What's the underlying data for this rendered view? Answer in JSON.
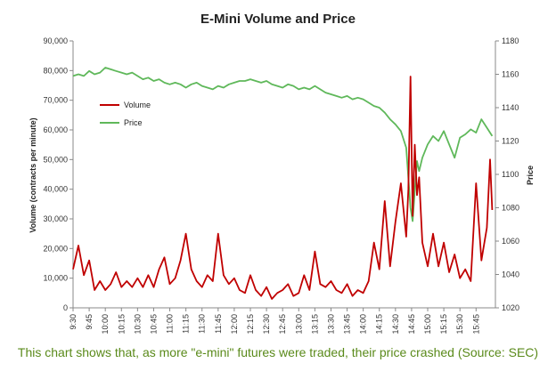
{
  "chart_data": {
    "type": "line",
    "title": "E-Mini Volume and Price",
    "ylabel_left": "Volume (contracts per minute)",
    "ylabel_right": "Price",
    "xlabel": "",
    "ylim_left": [
      0,
      90000
    ],
    "ylim_right": [
      1020,
      1180
    ],
    "yticks_left": [
      "0",
      "10,000",
      "20,000",
      "30,000",
      "40,000",
      "50,000",
      "60,000",
      "70,000",
      "80,000",
      "90,000"
    ],
    "yticks_left_values": [
      0,
      10000,
      20000,
      30000,
      40000,
      50000,
      60000,
      70000,
      80000,
      90000
    ],
    "yticks_right": [
      "1020",
      "1040",
      "1060",
      "1080",
      "1100",
      "1120",
      "1140",
      "1160",
      "1180"
    ],
    "yticks_right_values": [
      1020,
      1040,
      1060,
      1080,
      1100,
      1120,
      1140,
      1160,
      1180
    ],
    "x_tick_labels": [
      "9:30",
      "9:45",
      "10:00",
      "10:15",
      "10:30",
      "10:45",
      "11:00",
      "11:15",
      "11:30",
      "11:45",
      "12:00",
      "12:15",
      "12:30",
      "12:45",
      "13:00",
      "13:15",
      "13:30",
      "13:45",
      "14:00",
      "14:15",
      "14:30",
      "14:45",
      "15:00",
      "15:15",
      "15:30",
      "15:45"
    ],
    "x_minutes_start": 570,
    "x_minutes_end": 963,
    "grid": false,
    "legend_position": "top-left",
    "series": [
      {
        "name": "Volume",
        "axis": "left",
        "color": "#c00000",
        "points": [
          [
            "9:30",
            13000
          ],
          [
            "9:35",
            21000
          ],
          [
            "9:40",
            11000
          ],
          [
            "9:45",
            16000
          ],
          [
            "9:50",
            6000
          ],
          [
            "9:55",
            9000
          ],
          [
            "10:00",
            6000
          ],
          [
            "10:05",
            8000
          ],
          [
            "10:10",
            12000
          ],
          [
            "10:15",
            7000
          ],
          [
            "10:20",
            9000
          ],
          [
            "10:25",
            7000
          ],
          [
            "10:30",
            10000
          ],
          [
            "10:35",
            7000
          ],
          [
            "10:40",
            11000
          ],
          [
            "10:45",
            7000
          ],
          [
            "10:50",
            13000
          ],
          [
            "10:55",
            17000
          ],
          [
            "11:00",
            8000
          ],
          [
            "11:05",
            10000
          ],
          [
            "11:10",
            16000
          ],
          [
            "11:15",
            25000
          ],
          [
            "11:20",
            13000
          ],
          [
            "11:25",
            9000
          ],
          [
            "11:30",
            7000
          ],
          [
            "11:35",
            11000
          ],
          [
            "11:40",
            9000
          ],
          [
            "11:45",
            25000
          ],
          [
            "11:50",
            11000
          ],
          [
            "11:55",
            8000
          ],
          [
            "12:00",
            10000
          ],
          [
            "12:05",
            6000
          ],
          [
            "12:10",
            5000
          ],
          [
            "12:15",
            11000
          ],
          [
            "12:20",
            6000
          ],
          [
            "12:25",
            4000
          ],
          [
            "12:30",
            7000
          ],
          [
            "12:35",
            3000
          ],
          [
            "12:40",
            5000
          ],
          [
            "12:45",
            6000
          ],
          [
            "12:50",
            8000
          ],
          [
            "12:55",
            4000
          ],
          [
            "13:00",
            5000
          ],
          [
            "13:05",
            11000
          ],
          [
            "13:10",
            6000
          ],
          [
            "13:15",
            19000
          ],
          [
            "13:20",
            8000
          ],
          [
            "13:25",
            7000
          ],
          [
            "13:30",
            9000
          ],
          [
            "13:35",
            6000
          ],
          [
            "13:40",
            5000
          ],
          [
            "13:45",
            8000
          ],
          [
            "13:50",
            4000
          ],
          [
            "13:55",
            6000
          ],
          [
            "14:00",
            5000
          ],
          [
            "14:05",
            9000
          ],
          [
            "14:10",
            22000
          ],
          [
            "14:15",
            13000
          ],
          [
            "14:20",
            36000
          ],
          [
            "14:25",
            14000
          ],
          [
            "14:30",
            29000
          ],
          [
            "14:35",
            42000
          ],
          [
            "14:40",
            24000
          ],
          [
            "14:42",
            40000
          ],
          [
            "14:44",
            78000
          ],
          [
            "14:46",
            31000
          ],
          [
            "14:48",
            55000
          ],
          [
            "14:50",
            38000
          ],
          [
            "14:52",
            44000
          ],
          [
            "14:55",
            22000
          ],
          [
            "15:00",
            14000
          ],
          [
            "15:05",
            25000
          ],
          [
            "15:10",
            14000
          ],
          [
            "15:15",
            22000
          ],
          [
            "15:20",
            12000
          ],
          [
            "15:25",
            18000
          ],
          [
            "15:30",
            10000
          ],
          [
            "15:35",
            13000
          ],
          [
            "15:40",
            9000
          ],
          [
            "15:45",
            42000
          ],
          [
            "15:50",
            16000
          ],
          [
            "15:55",
            27000
          ],
          [
            "15:58",
            50000
          ],
          [
            "16:00",
            33000
          ]
        ]
      },
      {
        "name": "Price",
        "axis": "right",
        "color": "#5fb85a",
        "points": [
          [
            "9:30",
            1159
          ],
          [
            "9:35",
            1160
          ],
          [
            "9:40",
            1159
          ],
          [
            "9:45",
            1162
          ],
          [
            "9:50",
            1160
          ],
          [
            "9:55",
            1161
          ],
          [
            "10:00",
            1164
          ],
          [
            "10:05",
            1163
          ],
          [
            "10:10",
            1162
          ],
          [
            "10:15",
            1161
          ],
          [
            "10:20",
            1160
          ],
          [
            "10:25",
            1161
          ],
          [
            "10:30",
            1159
          ],
          [
            "10:35",
            1157
          ],
          [
            "10:40",
            1158
          ],
          [
            "10:45",
            1156
          ],
          [
            "10:50",
            1157
          ],
          [
            "10:55",
            1155
          ],
          [
            "11:00",
            1154
          ],
          [
            "11:05",
            1155
          ],
          [
            "11:10",
            1154
          ],
          [
            "11:15",
            1152
          ],
          [
            "11:20",
            1154
          ],
          [
            "11:25",
            1155
          ],
          [
            "11:30",
            1153
          ],
          [
            "11:35",
            1152
          ],
          [
            "11:40",
            1151
          ],
          [
            "11:45",
            1153
          ],
          [
            "11:50",
            1152
          ],
          [
            "11:55",
            1154
          ],
          [
            "12:00",
            1155
          ],
          [
            "12:05",
            1156
          ],
          [
            "12:10",
            1156
          ],
          [
            "12:15",
            1157
          ],
          [
            "12:20",
            1156
          ],
          [
            "12:25",
            1155
          ],
          [
            "12:30",
            1156
          ],
          [
            "12:35",
            1154
          ],
          [
            "12:40",
            1153
          ],
          [
            "12:45",
            1152
          ],
          [
            "12:50",
            1154
          ],
          [
            "12:55",
            1153
          ],
          [
            "13:00",
            1151
          ],
          [
            "13:05",
            1152
          ],
          [
            "13:10",
            1151
          ],
          [
            "13:15",
            1153
          ],
          [
            "13:20",
            1151
          ],
          [
            "13:25",
            1149
          ],
          [
            "13:30",
            1148
          ],
          [
            "13:35",
            1147
          ],
          [
            "13:40",
            1146
          ],
          [
            "13:45",
            1147
          ],
          [
            "13:50",
            1145
          ],
          [
            "13:55",
            1146
          ],
          [
            "14:00",
            1145
          ],
          [
            "14:05",
            1143
          ],
          [
            "14:10",
            1141
          ],
          [
            "14:15",
            1140
          ],
          [
            "14:20",
            1137
          ],
          [
            "14:25",
            1133
          ],
          [
            "14:30",
            1130
          ],
          [
            "14:35",
            1126
          ],
          [
            "14:40",
            1116
          ],
          [
            "14:42",
            1098
          ],
          [
            "14:44",
            1080
          ],
          [
            "14:46",
            1072
          ],
          [
            "14:48",
            1090
          ],
          [
            "14:50",
            1108
          ],
          [
            "14:52",
            1102
          ],
          [
            "14:55",
            1110
          ],
          [
            "15:00",
            1118
          ],
          [
            "15:05",
            1123
          ],
          [
            "15:10",
            1120
          ],
          [
            "15:15",
            1126
          ],
          [
            "15:20",
            1118
          ],
          [
            "15:25",
            1110
          ],
          [
            "15:30",
            1122
          ],
          [
            "15:35",
            1124
          ],
          [
            "15:40",
            1127
          ],
          [
            "15:45",
            1125
          ],
          [
            "15:50",
            1133
          ],
          [
            "15:55",
            1128
          ],
          [
            "15:58",
            1125
          ],
          [
            "16:00",
            1123
          ]
        ]
      }
    ]
  },
  "caption": "This chart shows that, as more \"e-mini\" futures were traded, their price crashed (Source: SEC)"
}
